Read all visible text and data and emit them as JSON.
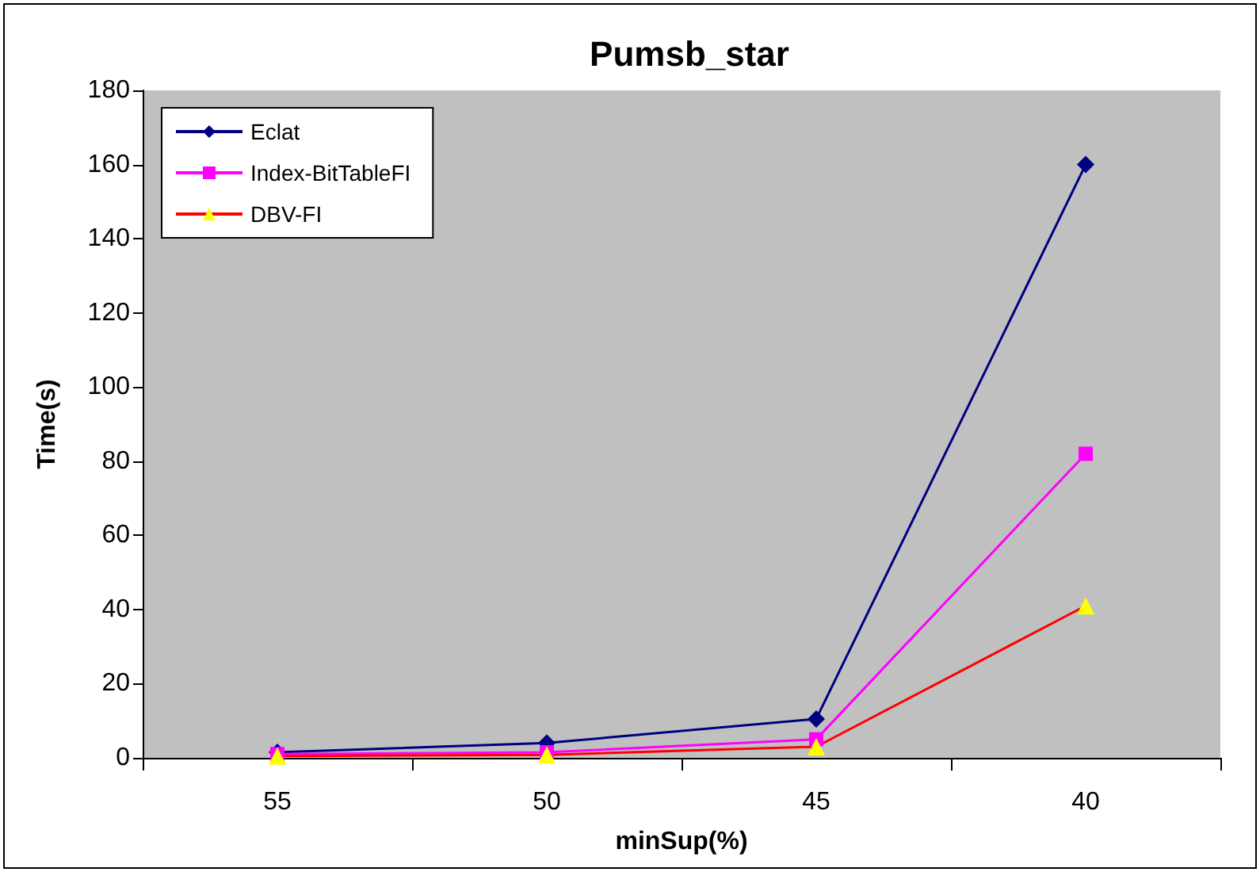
{
  "chart_data": {
    "type": "line",
    "title": "Pumsb_star",
    "xlabel": "minSup(%)",
    "ylabel": "Time(s)",
    "categories": [
      "55",
      "50",
      "45",
      "40"
    ],
    "series": [
      {
        "name": "Eclat",
        "color": "#000080",
        "marker": "diamond",
        "values": [
          1.5,
          4,
          10.5,
          160
        ]
      },
      {
        "name": "Index-BitTableFI",
        "color": "#ff00ff",
        "marker": "square",
        "values": [
          1,
          1.5,
          5,
          82
        ]
      },
      {
        "name": "DBV-FI",
        "color": "#ff0000",
        "marker": "triangle",
        "colors": [
          "#ffff00",
          "#ffff00",
          "#ffff00",
          "#ffff00"
        ],
        "values": [
          0.5,
          0.8,
          3,
          41
        ]
      }
    ],
    "ylim": [
      0,
      180
    ],
    "yticks": [
      0,
      20,
      40,
      60,
      80,
      100,
      120,
      140,
      160,
      180
    ],
    "grid": false,
    "legend": "top left"
  }
}
